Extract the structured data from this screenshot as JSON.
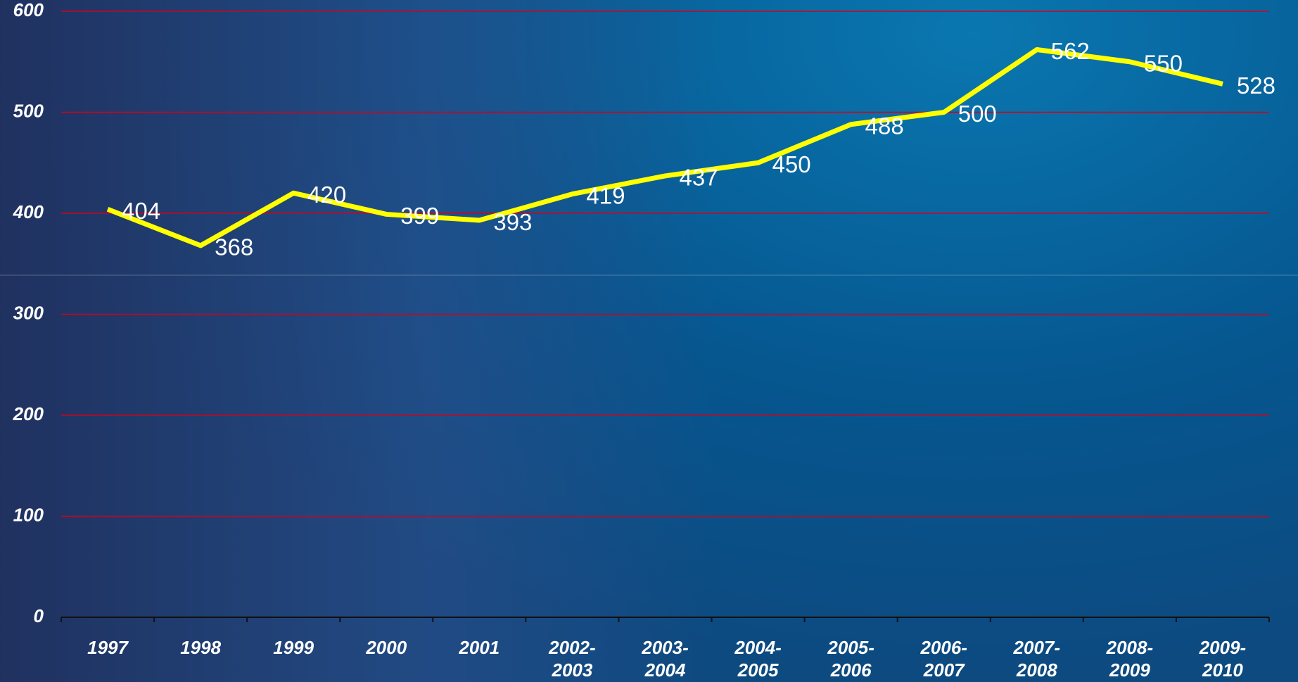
{
  "chart_data": {
    "type": "line",
    "categories": [
      "1997",
      "1998",
      "1999",
      "2000",
      "2001",
      "2002-\n2003",
      "2003-\n2004",
      "2004-\n2005",
      "2005-\n2006",
      "2006-\n2007",
      "2007-\n2008",
      "2008-\n2009",
      "2009-\n2010"
    ],
    "series": [
      {
        "name": null,
        "color": "#ffff00",
        "values": [
          404,
          368,
          420,
          399,
          393,
          419,
          437,
          450,
          488,
          500,
          562,
          550,
          528
        ]
      }
    ],
    "ylim": [
      0,
      600
    ],
    "yticks": [
      0,
      100,
      200,
      300,
      400,
      500,
      600
    ],
    "grid": true,
    "grid_color": "#d0021b"
  }
}
